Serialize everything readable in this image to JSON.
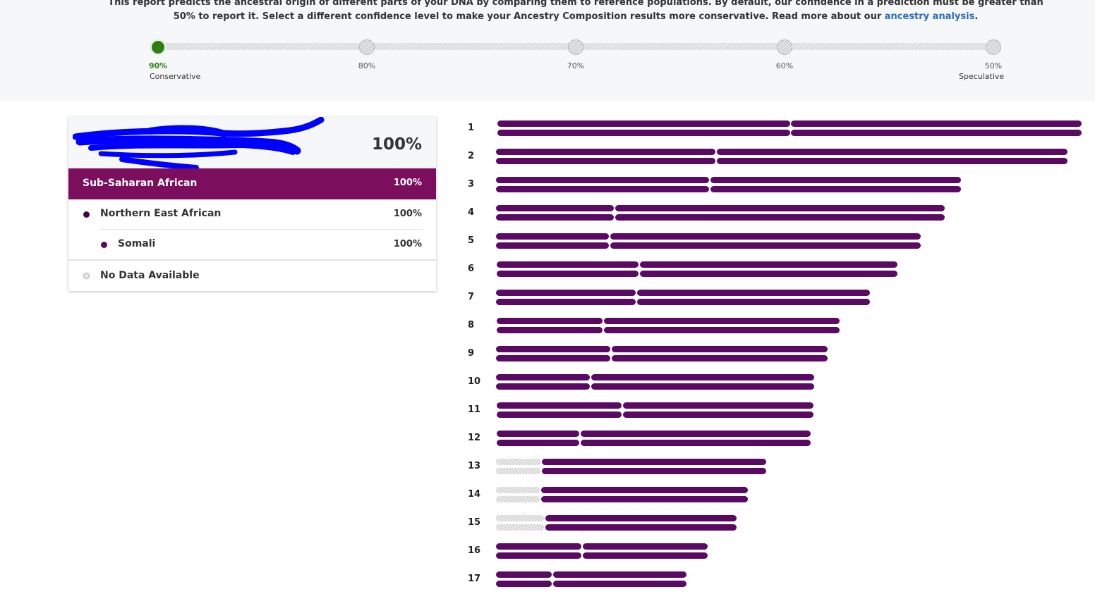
{
  "intro": {
    "text_before": "This report predicts the ancestral origin of different parts of your DNA by comparing them to reference populations. By default, our confidence in a prediction must be greater than 50% to report it. Select a different confidence level to make your Ancestry Composition results more conservative. Read more about our ",
    "link": "ancestry analysis",
    "text_after": "."
  },
  "confidence": {
    "selected": "90%",
    "levels": [
      "90%",
      "80%",
      "70%",
      "60%",
      "50%"
    ],
    "left_caption": "Conservative",
    "right_caption": "Speculative"
  },
  "panel": {
    "total_percent": "100%",
    "region": {
      "label": "Sub-Saharan African",
      "percent": "100%",
      "color": "#7b0f5e"
    },
    "subregion": {
      "label": "Northern East African",
      "percent": "100%"
    },
    "population": {
      "label": "Somali",
      "percent": "100%"
    },
    "no_data": {
      "label": "No Data Available"
    }
  },
  "chromosomes": [
    "1",
    "2",
    "3",
    "4",
    "5",
    "6",
    "7",
    "8",
    "9",
    "10",
    "11",
    "12",
    "13",
    "14",
    "15",
    "16",
    "17"
  ],
  "colors": {
    "ancestry": "#5a0a63",
    "selected": "#2f7d16",
    "link": "#2a6ebb"
  }
}
